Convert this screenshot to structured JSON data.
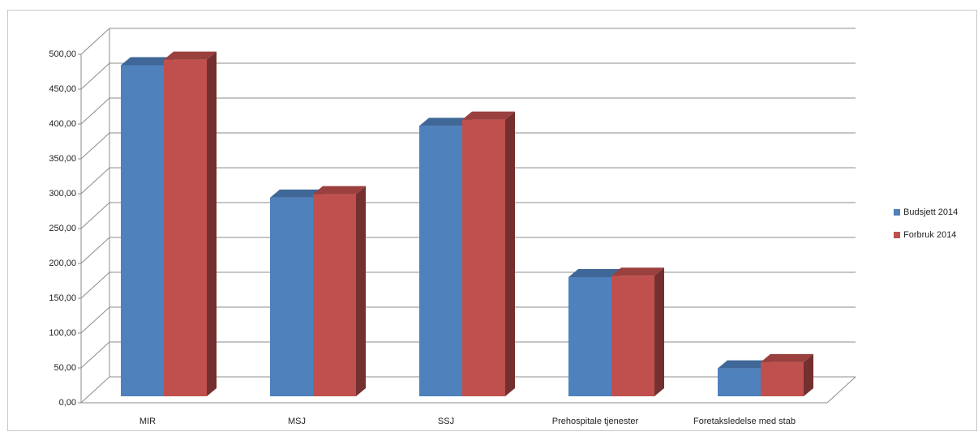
{
  "chart_data": {
    "type": "bar3d",
    "categories": [
      "MIR",
      "MSJ",
      "SSJ",
      "Prehospitale tjenester",
      "Foretaksledelse med stab"
    ],
    "series": [
      {
        "name": "Budsjett 2014",
        "color": "#4f81bd",
        "values": [
          475,
          285,
          388,
          171,
          40
        ]
      },
      {
        "name": "Forbruk 2014",
        "color": "#c0504d",
        "values": [
          483,
          290,
          397,
          173,
          49
        ]
      }
    ],
    "ylim": [
      0,
      500
    ],
    "yticks": [
      {
        "value": 0,
        "label": "0,00"
      },
      {
        "value": 50,
        "label": "50,00"
      },
      {
        "value": 100,
        "label": "100,00"
      },
      {
        "value": 150,
        "label": "150,00"
      },
      {
        "value": 200,
        "label": "200,00"
      },
      {
        "value": 250,
        "label": "250,00"
      },
      {
        "value": 300,
        "label": "300,00"
      },
      {
        "value": 350,
        "label": "350,00"
      },
      {
        "value": 400,
        "label": "400,00"
      },
      {
        "value": 450,
        "label": "450,00"
      },
      {
        "value": 500,
        "label": "500,00"
      }
    ],
    "grid": true,
    "legend": "right"
  }
}
